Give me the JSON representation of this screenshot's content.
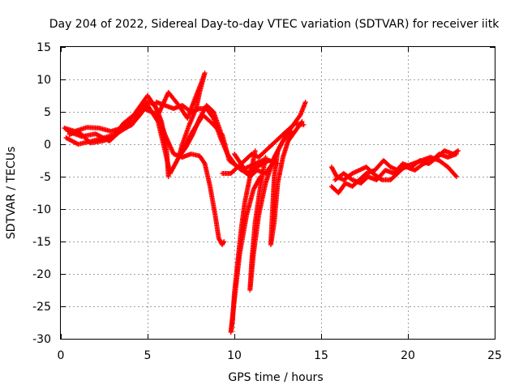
{
  "chart_data": {
    "type": "scatter",
    "title": "Day 204 of 2022, Sidereal Day-to-day VTEC variation (SDTVAR) for receiver iitk",
    "xlabel": "GPS time / hours",
    "ylabel": "SDTVAR / TECUs",
    "xlim": [
      0,
      25
    ],
    "ylim": [
      -30,
      15
    ],
    "xticks": [
      "0",
      "5",
      "10",
      "15",
      "20",
      "25"
    ],
    "yticks": [
      "15",
      "10",
      "5",
      "0",
      "-5",
      "-10",
      "-15",
      "-20",
      "-25",
      "-30"
    ],
    "grid": true,
    "marker": "+",
    "color": "#ff0000",
    "series": [
      {
        "points": [
          [
            0.2,
            2.5
          ],
          [
            0.8,
            2.0
          ],
          [
            1.5,
            2.6
          ],
          [
            2.2,
            2.5
          ],
          [
            2.9,
            2.0
          ],
          [
            3.5,
            2.5
          ],
          [
            4.0,
            3.8
          ],
          [
            4.5,
            5.0
          ],
          [
            5.0,
            6.5
          ],
          [
            5.4,
            6.2
          ],
          [
            5.8,
            3.5
          ],
          [
            6.1,
            -1.0
          ],
          [
            6.2,
            -5.0
          ]
        ]
      },
      {
        "points": [
          [
            0.3,
            1.0
          ],
          [
            1.0,
            0.0
          ],
          [
            1.8,
            0.5
          ],
          [
            2.5,
            1.0
          ],
          [
            3.2,
            1.6
          ],
          [
            3.8,
            2.6
          ],
          [
            4.4,
            4.0
          ],
          [
            5.0,
            6.0
          ],
          [
            5.6,
            3.5
          ],
          [
            6.0,
            -1.0
          ],
          [
            6.3,
            -4.5
          ],
          [
            6.5,
            -3.5
          ],
          [
            7.0,
            -1.0
          ],
          [
            7.6,
            2.0
          ],
          [
            8.2,
            4.5
          ],
          [
            8.8,
            3.0
          ],
          [
            9.3,
            1.5
          ],
          [
            9.7,
            -2.5
          ],
          [
            10.2,
            -3.5
          ],
          [
            10.7,
            -4.5
          ],
          [
            11.3,
            -3.5
          ],
          [
            12.0,
            -2.5
          ],
          [
            12.5,
            -3.0
          ]
        ]
      },
      {
        "points": [
          [
            0.5,
            1.5
          ],
          [
            1.0,
            2.0
          ],
          [
            1.7,
            0.2
          ],
          [
            2.4,
            0.5
          ],
          [
            3.0,
            1.0
          ],
          [
            3.6,
            3.2
          ],
          [
            4.2,
            4.5
          ],
          [
            5.0,
            7.5
          ],
          [
            5.5,
            5.5
          ],
          [
            6.0,
            1.5
          ],
          [
            6.5,
            -1.5
          ],
          [
            7.0,
            -2.0
          ],
          [
            7.5,
            -1.5
          ],
          [
            8.0,
            -1.8
          ],
          [
            8.3,
            -3.0
          ],
          [
            8.6,
            -6.5
          ],
          [
            8.9,
            -11.0
          ],
          [
            9.1,
            -14.5
          ],
          [
            9.3,
            -15.5
          ],
          [
            9.4,
            -15.0
          ]
        ]
      },
      {
        "points": [
          [
            0.4,
            2.0
          ],
          [
            1.2,
            1.2
          ],
          [
            2.0,
            1.6
          ],
          [
            2.8,
            0.5
          ],
          [
            3.5,
            2.2
          ],
          [
            4.1,
            3.0
          ],
          [
            4.8,
            5.5
          ],
          [
            5.2,
            5.0
          ],
          [
            5.6,
            4.5
          ],
          [
            6.2,
            8.0
          ],
          [
            6.8,
            6.0
          ],
          [
            7.3,
            4.0
          ],
          [
            7.8,
            7.5
          ],
          [
            8.1,
            9.5
          ],
          [
            8.3,
            11.0
          ],
          [
            8.0,
            8.0
          ],
          [
            7.8,
            5.5
          ],
          [
            7.4,
            3.0
          ],
          [
            7.0,
            0.0
          ],
          [
            6.8,
            -2.0
          ],
          [
            7.2,
            -0.5
          ],
          [
            7.6,
            1.5
          ],
          [
            8.0,
            4.0
          ],
          [
            8.4,
            6.0
          ],
          [
            8.8,
            5.0
          ],
          [
            9.2,
            2.0
          ]
        ]
      },
      {
        "points": [
          [
            5.5,
            6.5
          ],
          [
            6.0,
            6.0
          ],
          [
            6.5,
            5.5
          ],
          [
            7.0,
            6.0
          ],
          [
            7.5,
            5.0
          ],
          [
            8.0,
            5.5
          ],
          [
            8.4,
            5.5
          ],
          [
            8.8,
            4.0
          ],
          [
            9.2,
            1.0
          ],
          [
            9.6,
            -1.5
          ],
          [
            10.0,
            -3.0
          ],
          [
            10.4,
            -4.0
          ],
          [
            10.8,
            -3.5
          ],
          [
            11.2,
            -3.0
          ],
          [
            11.6,
            -2.5
          ],
          [
            12.0,
            -2.5
          ]
        ]
      },
      {
        "points": [
          [
            10.0,
            -1.5
          ],
          [
            10.5,
            -3.5
          ],
          [
            10.9,
            -5.0
          ],
          [
            11.3,
            -4.0
          ],
          [
            11.8,
            -4.5
          ],
          [
            12.2,
            -3.0
          ],
          [
            12.6,
            -0.5
          ],
          [
            13.0,
            1.5
          ],
          [
            13.4,
            3.0
          ],
          [
            13.8,
            4.5
          ],
          [
            14.1,
            6.5
          ]
        ]
      },
      {
        "points": [
          [
            9.3,
            -4.5
          ],
          [
            9.8,
            -4.5
          ],
          [
            10.2,
            -3.5
          ],
          [
            10.6,
            -2.5
          ],
          [
            11.0,
            -1.5
          ],
          [
            11.4,
            -2.0
          ],
          [
            11.8,
            -1.0
          ],
          [
            12.2,
            0.0
          ],
          [
            12.6,
            1.0
          ],
          [
            13.0,
            2.0
          ],
          [
            13.5,
            3.2
          ],
          [
            14.0,
            3.0
          ]
        ]
      },
      {
        "points": [
          [
            12.5,
            -1.0
          ],
          [
            12.3,
            -5.0
          ],
          [
            12.2,
            -10.0
          ],
          [
            12.1,
            -15.5
          ],
          [
            12.3,
            -12.0
          ],
          [
            12.5,
            -6.0
          ],
          [
            12.8,
            -2.0
          ],
          [
            13.1,
            0.5
          ],
          [
            13.5,
            2.0
          ],
          [
            13.9,
            3.5
          ]
        ]
      },
      {
        "points": [
          [
            11.8,
            -2.0
          ],
          [
            11.5,
            -6.5
          ],
          [
            11.2,
            -12.0
          ],
          [
            11.0,
            -18.0
          ],
          [
            10.9,
            -22.5
          ],
          [
            11.1,
            -17.0
          ],
          [
            11.4,
            -11.0
          ],
          [
            11.8,
            -6.0
          ],
          [
            12.3,
            -2.0
          ],
          [
            12.8,
            0.5
          ],
          [
            13.3,
            2.0
          ]
        ]
      },
      {
        "points": [
          [
            11.2,
            -1.0
          ],
          [
            10.9,
            -5.0
          ],
          [
            10.6,
            -9.0
          ],
          [
            10.4,
            -13.0
          ],
          [
            10.2,
            -18.0
          ],
          [
            10.0,
            -23.0
          ],
          [
            9.9,
            -27.0
          ],
          [
            9.8,
            -29.0
          ],
          [
            10.0,
            -24.0
          ],
          [
            10.3,
            -17.0
          ],
          [
            10.7,
            -11.0
          ],
          [
            11.1,
            -7.0
          ],
          [
            11.5,
            -5.0
          ]
        ]
      },
      {
        "points": [
          [
            15.6,
            -3.5
          ],
          [
            15.9,
            -5.0
          ],
          [
            16.3,
            -5.5
          ],
          [
            16.8,
            -4.5
          ],
          [
            17.2,
            -4.0
          ],
          [
            17.6,
            -3.5
          ],
          [
            18.0,
            -4.5
          ],
          [
            18.5,
            -5.5
          ],
          [
            19.0,
            -5.5
          ],
          [
            19.4,
            -4.5
          ],
          [
            19.8,
            -3.5
          ],
          [
            20.3,
            -3.0
          ],
          [
            20.8,
            -2.5
          ],
          [
            21.3,
            -2.0
          ],
          [
            21.8,
            -2.5
          ],
          [
            22.3,
            -3.5
          ],
          [
            22.8,
            -5.0
          ]
        ]
      },
      {
        "points": [
          [
            15.6,
            -6.5
          ],
          [
            16.0,
            -7.5
          ],
          [
            16.4,
            -6.0
          ],
          [
            16.8,
            -6.5
          ],
          [
            17.2,
            -5.5
          ],
          [
            17.6,
            -4.5
          ],
          [
            18.1,
            -4.0
          ],
          [
            18.6,
            -2.5
          ],
          [
            19.0,
            -3.5
          ],
          [
            19.4,
            -4.0
          ],
          [
            19.9,
            -3.5
          ],
          [
            20.4,
            -4.0
          ],
          [
            20.9,
            -3.0
          ],
          [
            21.4,
            -2.5
          ],
          [
            21.8,
            -1.5
          ],
          [
            22.3,
            -2.0
          ],
          [
            22.8,
            -1.5
          ]
        ]
      },
      {
        "points": [
          [
            15.8,
            -5.5
          ],
          [
            16.3,
            -4.5
          ],
          [
            16.8,
            -5.5
          ],
          [
            17.3,
            -6.0
          ],
          [
            17.7,
            -5.0
          ],
          [
            18.2,
            -5.5
          ],
          [
            18.7,
            -4.0
          ],
          [
            19.2,
            -4.5
          ],
          [
            19.7,
            -3.0
          ],
          [
            20.2,
            -3.5
          ],
          [
            20.7,
            -2.5
          ],
          [
            21.2,
            -3.0
          ],
          [
            21.7,
            -2.0
          ],
          [
            22.1,
            -1.0
          ],
          [
            22.6,
            -1.5
          ],
          [
            22.9,
            -1.0
          ]
        ]
      }
    ]
  }
}
